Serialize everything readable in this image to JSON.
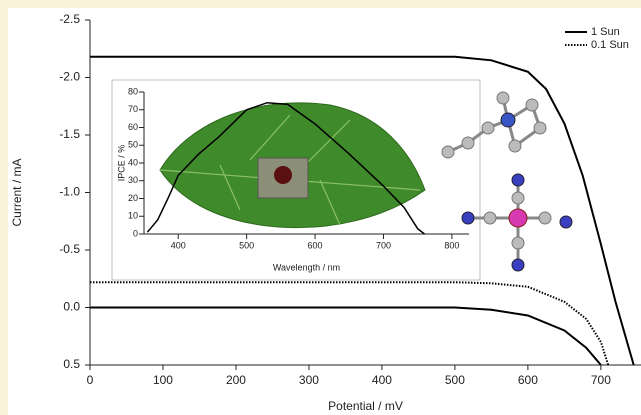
{
  "chart_data": [
    {
      "type": "line",
      "x_label": "Potential / mV",
      "y_label": "Current / mA",
      "xlim": [
        0,
        755
      ],
      "xticks": [
        0,
        100,
        200,
        300,
        400,
        500,
        600,
        700
      ],
      "ylim": [
        -2.5,
        0.5
      ],
      "y_reversed": true,
      "yticks": [
        -2.5,
        {
          "value": -2.0,
          "label": "-2.0"
        },
        -1.5,
        {
          "value": -1.0,
          "label": "-1.0"
        },
        -0.5,
        {
          "value": 0.0,
          "label": "0.0"
        },
        0.5
      ],
      "legend": "top-right",
      "series": [
        {
          "name": "1 Sun",
          "color": "#000000",
          "dash": "solid",
          "x": [
            0,
            100,
            200,
            300,
            400,
            500,
            550,
            600,
            625,
            650,
            675,
            700,
            720,
            745
          ],
          "values": [
            -2.18,
            -2.18,
            -2.18,
            -2.18,
            -2.18,
            -2.18,
            -2.15,
            -2.05,
            -1.9,
            -1.6,
            -1.15,
            -0.55,
            -0.05,
            0.5
          ]
        },
        {
          "name": "0.1 Sun",
          "color": "#000000",
          "dash": "dotted",
          "x": [
            0,
            100,
            200,
            300,
            400,
            500,
            550,
            600,
            650,
            680,
            700,
            710
          ],
          "values": [
            -0.22,
            -0.22,
            -0.22,
            -0.22,
            -0.22,
            -0.22,
            -0.21,
            -0.18,
            -0.05,
            0.1,
            0.3,
            0.5
          ]
        },
        {
          "color": "#000000",
          "dash": "solid",
          "x": [
            0,
            100,
            200,
            300,
            400,
            500,
            550,
            600,
            650,
            680,
            700
          ],
          "values": [
            0.0,
            0.0,
            0.0,
            0.0,
            0.0,
            0.0,
            0.02,
            0.07,
            0.2,
            0.35,
            0.5
          ]
        }
      ]
    },
    {
      "type": "line",
      "x_label": "Wavelength / nm",
      "y_label": "IPCE / %",
      "xlim": [
        350,
        825
      ],
      "xticks": [
        400,
        500,
        600,
        700,
        800
      ],
      "ylim": [
        0,
        80
      ],
      "yticks": [
        0,
        10,
        20,
        30,
        40,
        50,
        60,
        70,
        80
      ],
      "series": [
        {
          "color": "#000000",
          "dash": "solid",
          "x": [
            355,
            370,
            385,
            400,
            430,
            460,
            500,
            530,
            560,
            600,
            650,
            700,
            730,
            750,
            760
          ],
          "values": [
            1,
            8,
            20,
            33,
            45,
            55,
            70,
            74,
            73,
            62,
            45,
            27,
            15,
            3,
            0
          ]
        }
      ]
    }
  ]
}
